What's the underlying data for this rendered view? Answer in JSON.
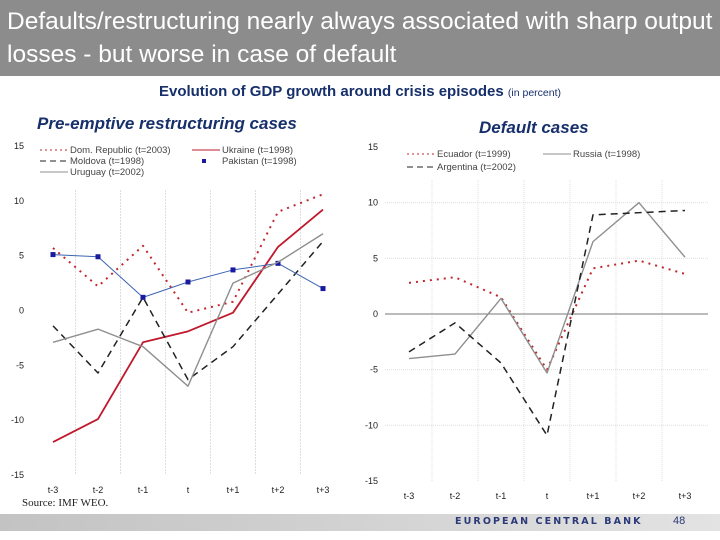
{
  "slide": {
    "title": "Defaults/restructuring nearly always associated with sharp output losses - but worse in case of default",
    "subtitle": "Evolution of GDP growth around crisis episodes",
    "subtitle_unit": "(in percent)",
    "source": "Source: IMF WEO.",
    "footer_org": "EUROPEAN CENTRAL BANK",
    "page_number": "48"
  },
  "chart_data": [
    {
      "type": "line",
      "title": "Pre-emptive restructuring cases",
      "xlabel": "",
      "ylabel": "",
      "categories": [
        "t-3",
        "t-2",
        "t-1",
        "t",
        "t+1",
        "t+2",
        "t+3"
      ],
      "ylim": [
        -15,
        15
      ],
      "yticks": [
        15,
        10,
        5,
        0,
        -5,
        -10,
        -15
      ],
      "grid": true,
      "legend_position": "top",
      "series": [
        {
          "name": "Dom. Republic (t=2003)",
          "style": "dotted",
          "color": "#c0282d",
          "values": [
            5.7,
            2.2,
            5.9,
            -0.2,
            0.8,
            9.0,
            10.6
          ]
        },
        {
          "name": "Ukraine (t=1998)",
          "style": "solid",
          "color": "#c0182d",
          "values": [
            -12.0,
            -9.9,
            -2.9,
            -1.9,
            -0.2,
            5.8,
            9.2
          ]
        },
        {
          "name": "Moldova (t=1998)",
          "style": "dashed",
          "color": "#222222",
          "values": [
            -1.4,
            -5.7,
            1.2,
            -6.3,
            -3.3,
            1.5,
            6.3
          ]
        },
        {
          "name": "Pakistan (t=1998)",
          "style": "marker",
          "color": "#1a1aa0",
          "values": [
            5.1,
            4.9,
            1.2,
            2.6,
            3.7,
            4.3,
            2.0
          ]
        },
        {
          "name": "Uruguay (t=2002)",
          "style": "solid",
          "color": "#8f8f8f",
          "values": [
            -2.9,
            -1.7,
            -3.3,
            -6.9,
            2.5,
            4.4,
            7.0
          ]
        }
      ]
    },
    {
      "type": "line",
      "title": "Default cases",
      "xlabel": "",
      "ylabel": "",
      "categories": [
        "t-3",
        "t-2",
        "t-1",
        "t",
        "t+1",
        "t+2",
        "t+3"
      ],
      "ylim": [
        -15,
        15
      ],
      "yticks": [
        15,
        10,
        5,
        0,
        -5,
        -10,
        -15
      ],
      "grid": true,
      "legend_position": "top",
      "series": [
        {
          "name": "Ecuador (t=1999)",
          "style": "dotted",
          "color": "#c0282d",
          "values": [
            2.8,
            3.3,
            1.5,
            -5.0,
            4.1,
            4.8,
            3.6
          ]
        },
        {
          "name": "Russia (t=1998)",
          "style": "solid",
          "color": "#8f8f8f",
          "values": [
            -4.0,
            -3.6,
            1.4,
            -5.3,
            6.5,
            10.0,
            5.1
          ]
        },
        {
          "name": "Argentina (t=2002)",
          "style": "dashed",
          "color": "#222222",
          "values": [
            -3.4,
            -0.8,
            -4.4,
            -10.9,
            8.9,
            9.1,
            9.3
          ]
        }
      ]
    }
  ]
}
